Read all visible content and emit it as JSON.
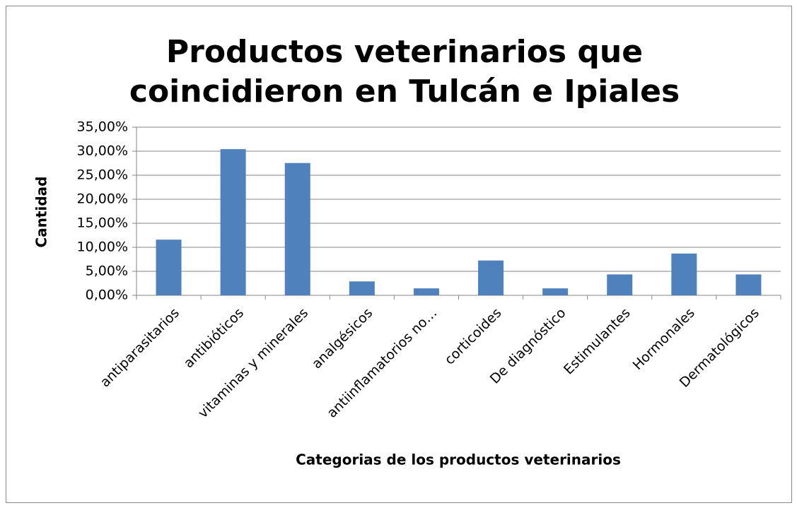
{
  "chart_data": {
    "type": "bar",
    "title": [
      "Productos veterinarios que",
      "coincidieron en Tulcán e Ipiales"
    ],
    "x_label": "Categorias de los productos veterinarios",
    "y_label": "Cantidad",
    "categories": [
      "antiparasitarios",
      "antibióticos",
      "vitaminas y minerales",
      "analgésicos",
      "antiinflamatorios no…",
      "corticoides",
      "De diagnóstico",
      "Estimulantes",
      "Hormonales",
      "Dermatológicos"
    ],
    "values": [
      11.59,
      30.43,
      27.54,
      2.9,
      1.45,
      7.25,
      1.45,
      4.35,
      8.7,
      4.35
    ],
    "color": "#4f81bd",
    "ylim": [
      0,
      35
    ],
    "yticks": [
      {
        "value": 0,
        "label": "0,00%"
      },
      {
        "value": 5,
        "label": "5,00%"
      },
      {
        "value": 10,
        "label": "10,00%"
      },
      {
        "value": 15,
        "label": "15,00%"
      },
      {
        "value": 20,
        "label": "20,00%"
      },
      {
        "value": 25,
        "label": "25,00%"
      },
      {
        "value": 30,
        "label": "30,00%"
      },
      {
        "value": 35,
        "label": "35,00%"
      }
    ],
    "grid": true
  }
}
